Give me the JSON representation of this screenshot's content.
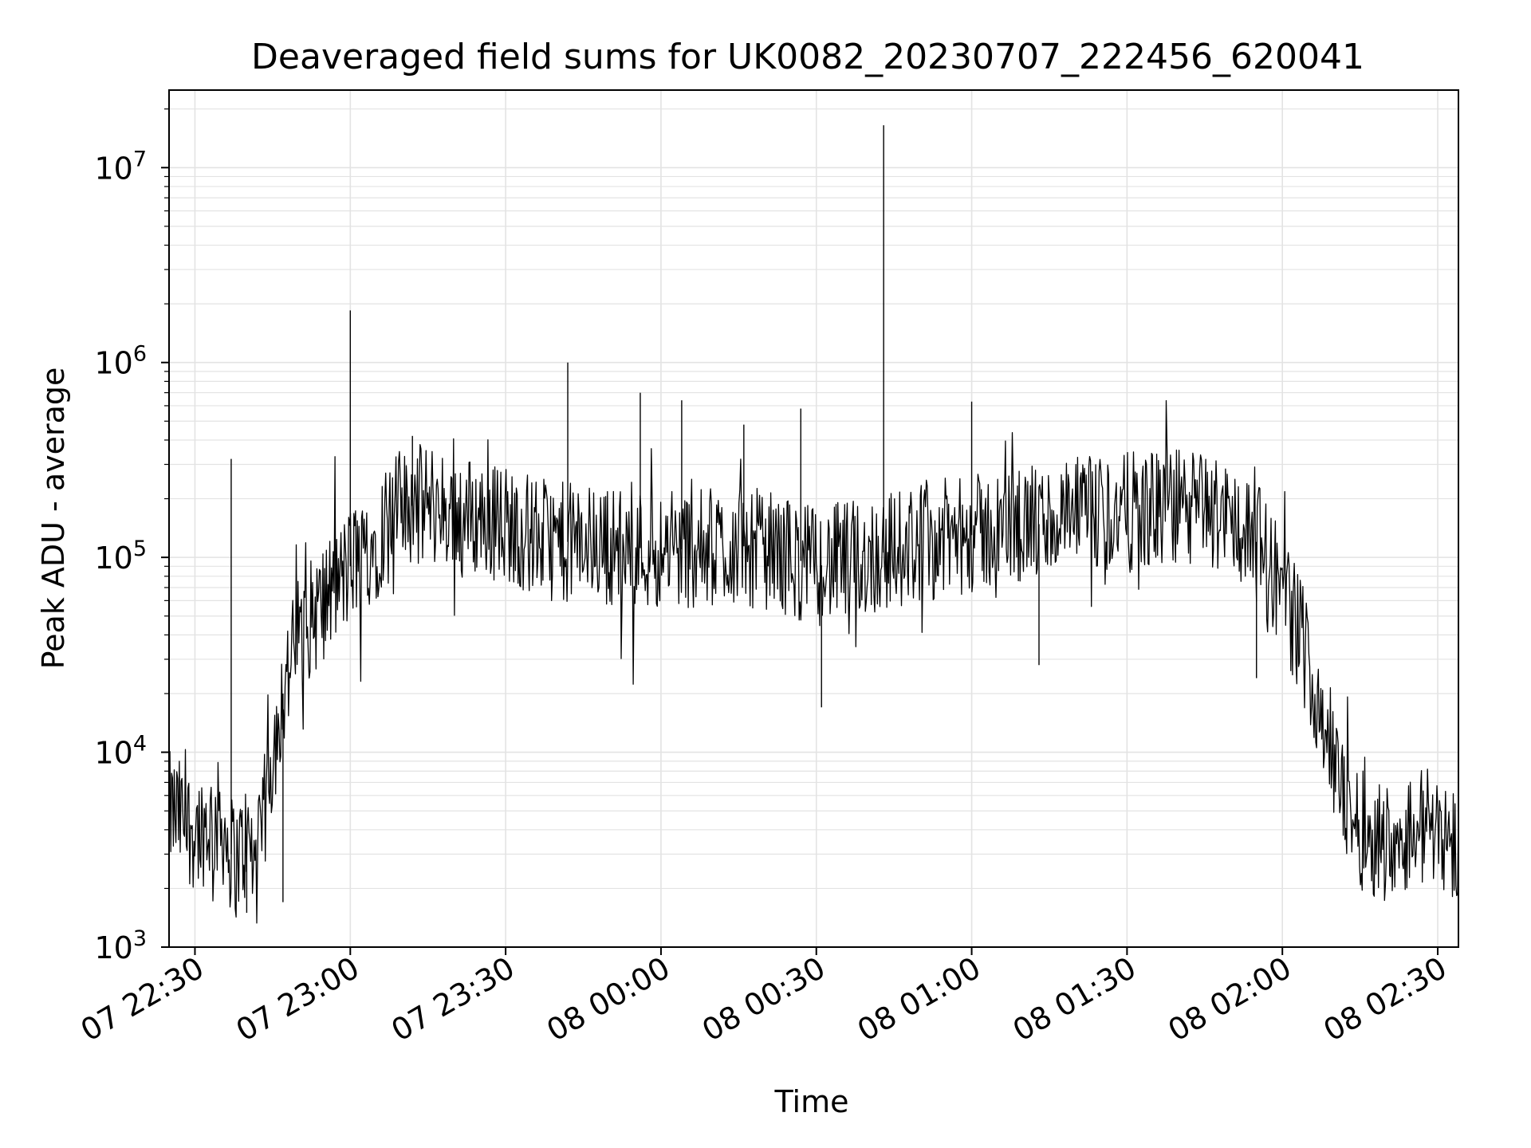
{
  "chart_data": {
    "type": "line",
    "title": "Deaveraged field sums for UK0082_20230707_222456_620041",
    "xlabel": "Time",
    "ylabel": "Peak ADU - average",
    "yscale": "log",
    "ylim": [
      1000,
      25000000
    ],
    "xlim": [
      "07 22:25",
      "08 02:34"
    ],
    "grid": true,
    "legend": "none",
    "line_color": "#000000",
    "grid_color": "#e3e3e3",
    "x_ticks": [
      "07 22:30",
      "07 23:00",
      "07 23:30",
      "08 00:00",
      "08 00:30",
      "08 01:00",
      "08 01:30",
      "08 02:00",
      "08 02:30"
    ],
    "y_ticks": [
      {
        "base": "10",
        "exp": "3",
        "value": 1000
      },
      {
        "base": "10",
        "exp": "4",
        "value": 10000
      },
      {
        "base": "10",
        "exp": "5",
        "value": 100000
      },
      {
        "base": "10",
        "exp": "6",
        "value": 1000000
      },
      {
        "base": "10",
        "exp": "7",
        "value": 10000000
      }
    ],
    "series": [
      {
        "x": [
          "07 22:25",
          "07 22:30",
          "07 22:35",
          "07 22:37",
          "07 22:38",
          "07 22:40",
          "07 22:42",
          "07 22:45",
          "07 22:47",
          "07 22:50",
          "07 22:55",
          "07 22:58",
          "07 23:00",
          "07 23:01",
          "07 23:05",
          "07 23:07",
          "07 23:10",
          "07 23:15",
          "07 23:20",
          "07 23:25",
          "07 23:30",
          "07 23:35",
          "07 23:40",
          "07 23:45",
          "07 23:50",
          "07 23:55",
          "08 00:00",
          "08 00:05",
          "08 00:10",
          "08 00:15",
          "08 00:20",
          "08 00:25",
          "08 00:30",
          "08 00:35",
          "08 00:40",
          "08 00:45",
          "08 00:50",
          "08 00:55",
          "08 01:00",
          "08 01:05",
          "08 01:10",
          "08 01:15",
          "08 01:20",
          "08 01:25",
          "08 01:30",
          "08 01:35",
          "08 01:40",
          "08 01:45",
          "08 01:50",
          "08 01:55",
          "08 02:00",
          "08 02:05",
          "08 02:08",
          "08 02:10",
          "08 02:15",
          "08 02:20",
          "08 02:25",
          "08 02:30",
          "08 02:34"
        ],
        "y": [
          5000,
          4000,
          4500,
          3000,
          2800,
          3500,
          2500,
          10000,
          20000,
          40000,
          60000,
          75000,
          90000,
          100000,
          120000,
          160000,
          180000,
          190000,
          170000,
          160000,
          150000,
          130000,
          120000,
          120000,
          115000,
          112000,
          110000,
          110000,
          112000,
          115000,
          110000,
          100000,
          90000,
          95000,
          100000,
          110000,
          120000,
          125000,
          130000,
          140000,
          145000,
          150000,
          160000,
          165000,
          170000,
          175000,
          180000,
          175000,
          160000,
          120000,
          70000,
          30000,
          15000,
          8000,
          4000,
          3500,
          4000,
          4500,
          3000
        ]
      }
    ],
    "spikes": [
      {
        "x": "07 22:37",
        "y": 320000
      },
      {
        "x": "07 22:40",
        "y": 1500
      },
      {
        "x": "07 22:47",
        "y": 1700
      },
      {
        "x": "07 23:00",
        "y": 1850000
      },
      {
        "x": "07 23:12",
        "y": 420000
      },
      {
        "x": "07 23:42",
        "y": 1000000
      },
      {
        "x": "07 23:56",
        "y": 700000
      },
      {
        "x": "08 00:04",
        "y": 640000
      },
      {
        "x": "08 00:16",
        "y": 480000
      },
      {
        "x": "08 00:27",
        "y": 580000
      },
      {
        "x": "08 00:31",
        "y": 17000
      },
      {
        "x": "08 00:43",
        "y": 16500000
      },
      {
        "x": "08 01:00",
        "y": 630000
      },
      {
        "x": "08 01:13",
        "y": 28000
      },
      {
        "x": "08 01:55",
        "y": 24000
      }
    ]
  }
}
